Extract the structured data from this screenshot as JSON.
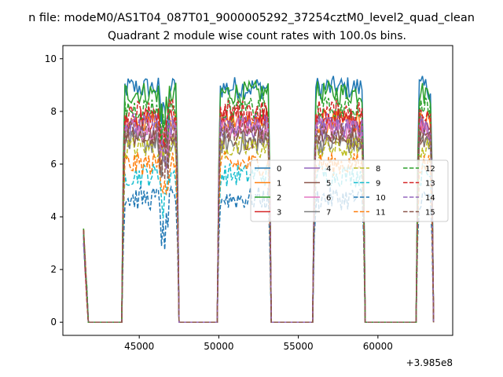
{
  "chart_data": {
    "type": "line",
    "suptitle": "n file: modeM0/AS1T04_087T01_9000005292_37254cztM0_level2_quad_clean",
    "title": "Quadrant 2 module wise count rates with 100.0s bins.",
    "xlabel": "",
    "ylabel": "",
    "x_offset_label": "+3.985e8",
    "xlim": [
      40200,
      64700
    ],
    "ylim": [
      -0.5,
      10.5
    ],
    "xticks": [
      45000,
      50000,
      55000,
      60000
    ],
    "xtick_labels": [
      "45000",
      "50000",
      "55000",
      "60000"
    ],
    "yticks": [
      0,
      2,
      4,
      6,
      8,
      10
    ],
    "ytick_labels": [
      "0",
      "2",
      "4",
      "6",
      "8",
      "10"
    ],
    "grid": false,
    "legend_position": "center-right",
    "legend_columns": 4,
    "segments": [
      [
        41500,
        43900
      ],
      [
        43900,
        47500
      ],
      [
        47500,
        49900
      ],
      [
        49900,
        53300
      ],
      [
        53300,
        55900
      ],
      [
        55900,
        59200
      ],
      [
        59200,
        62400
      ],
      [
        62400,
        63500
      ]
    ],
    "segment_active": [
      false,
      true,
      false,
      true,
      false,
      true,
      false,
      true
    ],
    "start_value": 3.3,
    "series": [
      {
        "name": "0",
        "color": "#1f77b4",
        "dash": "solid",
        "level": 8.9
      },
      {
        "name": "1",
        "color": "#ff7f0e",
        "dash": "solid",
        "level": 7.6
      },
      {
        "name": "2",
        "color": "#2ca02c",
        "dash": "solid",
        "level": 8.7
      },
      {
        "name": "3",
        "color": "#d62728",
        "dash": "solid",
        "level": 7.7
      },
      {
        "name": "4",
        "color": "#9467bd",
        "dash": "solid",
        "level": 7.3
      },
      {
        "name": "5",
        "color": "#8c564b",
        "dash": "solid",
        "level": 7.0
      },
      {
        "name": "6",
        "color": "#e377c2",
        "dash": "solid",
        "level": 7.4
      },
      {
        "name": "7",
        "color": "#7f7f7f",
        "dash": "solid",
        "level": 6.8
      },
      {
        "name": "8",
        "color": "#bcbd22",
        "dash": "dashed",
        "level": 6.6
      },
      {
        "name": "9",
        "color": "#17becf",
        "dash": "dashed",
        "level": 5.6
      },
      {
        "name": "10",
        "color": "#1f77b4",
        "dash": "dashed",
        "level": 4.7
      },
      {
        "name": "11",
        "color": "#ff7f0e",
        "dash": "dashed",
        "level": 6.0
      },
      {
        "name": "12",
        "color": "#2ca02c",
        "dash": "dashed",
        "level": 8.1
      },
      {
        "name": "13",
        "color": "#d62728",
        "dash": "dashed",
        "level": 8.0
      },
      {
        "name": "14",
        "color": "#9467bd",
        "dash": "dashed",
        "level": 7.5
      },
      {
        "name": "15",
        "color": "#8c564b",
        "dash": "dashed",
        "level": 7.2
      }
    ]
  }
}
